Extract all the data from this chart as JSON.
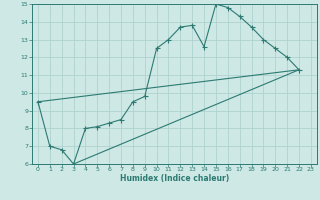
{
  "xlabel": "Humidex (Indice chaleur)",
  "bg_color": "#cde8e5",
  "grid_color": "#aacfcc",
  "line_color": "#2d7a72",
  "xlim": [
    -0.5,
    23.5
  ],
  "ylim": [
    6,
    15
  ],
  "xticks": [
    0,
    1,
    2,
    3,
    4,
    5,
    6,
    7,
    8,
    9,
    10,
    11,
    12,
    13,
    14,
    15,
    16,
    17,
    18,
    19,
    20,
    21,
    22,
    23
  ],
  "yticks": [
    6,
    7,
    8,
    9,
    10,
    11,
    12,
    13,
    14,
    15
  ],
  "line1_x": [
    0,
    1,
    2,
    3,
    4,
    5,
    6,
    7,
    8,
    9,
    10,
    11,
    12,
    13,
    14,
    15,
    16,
    17,
    18,
    19,
    20,
    21,
    22
  ],
  "line1_y": [
    9.5,
    7.0,
    6.8,
    6.0,
    8.0,
    8.1,
    8.3,
    8.5,
    9.5,
    9.8,
    12.5,
    13.0,
    13.7,
    13.8,
    12.6,
    15.0,
    14.8,
    14.3,
    13.7,
    13.0,
    12.5,
    12.0,
    11.3
  ],
  "line2_x": [
    0,
    22
  ],
  "line2_y": [
    9.5,
    11.3
  ],
  "line3_x": [
    3,
    22
  ],
  "line3_y": [
    6.0,
    11.3
  ]
}
